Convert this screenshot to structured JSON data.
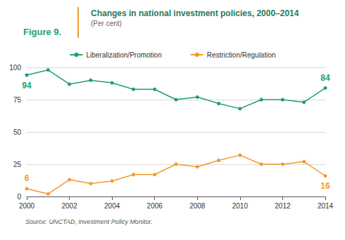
{
  "chart_data": {
    "type": "line",
    "figure_label": "Figure 9.",
    "title": "Changes in national investment policies, 2000–2014",
    "subtitle": "(Per cent)",
    "source": "Source: UNCTAD, Investment Policy Monitor.",
    "x": [
      2000,
      2001,
      2002,
      2003,
      2004,
      2005,
      2006,
      2007,
      2008,
      2009,
      2010,
      2011,
      2012,
      2013,
      2014
    ],
    "xlim": [
      2000,
      2014
    ],
    "xticks": [
      2000,
      2002,
      2004,
      2006,
      2008,
      2010,
      2012,
      2014
    ],
    "ylim": [
      0,
      100
    ],
    "yticks": [
      0,
      25,
      50,
      75,
      100
    ],
    "grid": true,
    "legend": "top",
    "series": [
      {
        "name": "Liberalization/Promotion",
        "color": "#1f9e78",
        "marker": "circle",
        "values": [
          94,
          98,
          87,
          90,
          88,
          83,
          83,
          75,
          77,
          72,
          68,
          75,
          75,
          73,
          84
        ]
      },
      {
        "name": "Restriction/Regulation",
        "color": "#f39a2e",
        "marker": "circle",
        "values": [
          6,
          2,
          13,
          10,
          12,
          17,
          17,
          25,
          23,
          28,
          32,
          25,
          25,
          27,
          16
        ]
      }
    ],
    "annotations": [
      {
        "series": "Liberalization/Promotion",
        "x": 2000,
        "text": "94"
      },
      {
        "series": "Liberalization/Promotion",
        "x": 2014,
        "text": "84"
      },
      {
        "series": "Restriction/Regulation",
        "x": 2000,
        "text": "6"
      },
      {
        "series": "Restriction/Regulation",
        "x": 2014,
        "text": "16"
      }
    ]
  }
}
